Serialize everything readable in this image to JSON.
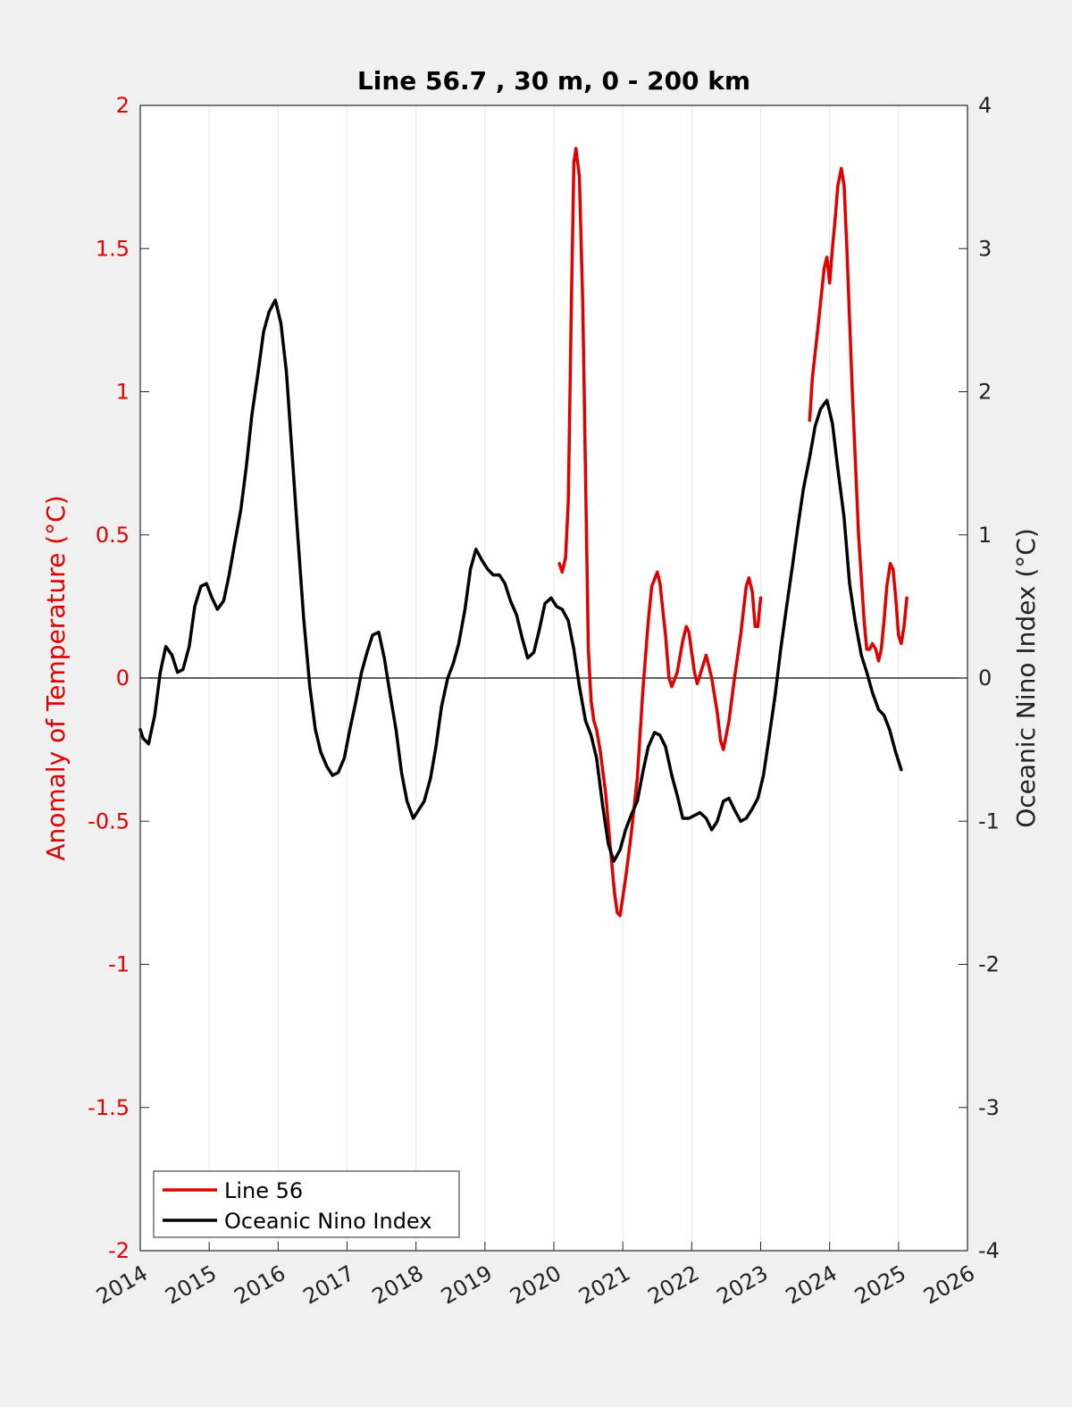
{
  "chart_data": {
    "type": "line",
    "title": "Line 56.7 , 30 m, 0 - 200 km",
    "ylabel_left": "Anomaly of Temperature (°C)",
    "ylabel_right": "Oceanic Nino Index (°C)",
    "xlim": [
      2014,
      2026
    ],
    "ylim_left": [
      -2,
      2
    ],
    "ylim_right": [
      -4,
      4
    ],
    "xticks": [
      "2014",
      "2015",
      "2016",
      "2017",
      "2018",
      "2019",
      "2020",
      "2021",
      "2022",
      "2023",
      "2024",
      "2025",
      "2026"
    ],
    "yticks_left": [
      "-2",
      "-1.5",
      "-1",
      "-0.5",
      "0",
      "0.5",
      "1",
      "1.5",
      "2"
    ],
    "yticks_right": [
      "-4",
      "-3",
      "-2",
      "-1",
      "0",
      "1",
      "2",
      "3",
      "4"
    ],
    "grid": "vertical",
    "zero_line": true,
    "legend_position": "bottom-left",
    "colors": {
      "line56": "#e00000",
      "oni": "#000000",
      "left_axis": "#e00000",
      "plot_bg": "#ffffff",
      "figure_bg": "#f0f0f0"
    },
    "series": [
      {
        "name": "Line 56",
        "axis": "left",
        "color": "#e00000",
        "segments": [
          [
            [
              2020.08,
              0.4
            ],
            [
              2020.12,
              0.37
            ],
            [
              2020.17,
              0.42
            ],
            [
              2020.21,
              0.62
            ],
            [
              2020.25,
              1.25
            ],
            [
              2020.29,
              1.8
            ],
            [
              2020.32,
              1.85
            ],
            [
              2020.37,
              1.75
            ],
            [
              2020.42,
              1.3
            ],
            [
              2020.46,
              0.7
            ],
            [
              2020.5,
              0.1
            ],
            [
              2020.54,
              -0.08
            ],
            [
              2020.58,
              -0.15
            ],
            [
              2020.62,
              -0.18
            ],
            [
              2020.67,
              -0.25
            ],
            [
              2020.75,
              -0.4
            ],
            [
              2020.83,
              -0.62
            ],
            [
              2020.88,
              -0.75
            ],
            [
              2020.92,
              -0.82
            ],
            [
              2020.96,
              -0.83
            ],
            [
              2021.04,
              -0.7
            ],
            [
              2021.12,
              -0.55
            ],
            [
              2021.21,
              -0.35
            ],
            [
              2021.29,
              -0.05
            ],
            [
              2021.37,
              0.2
            ],
            [
              2021.42,
              0.32
            ],
            [
              2021.5,
              0.37
            ],
            [
              2021.54,
              0.33
            ],
            [
              2021.62,
              0.15
            ],
            [
              2021.67,
              0.0
            ],
            [
              2021.71,
              -0.03
            ],
            [
              2021.79,
              0.02
            ],
            [
              2021.87,
              0.13
            ],
            [
              2021.92,
              0.18
            ],
            [
              2021.96,
              0.16
            ],
            [
              2022.04,
              0.02
            ],
            [
              2022.08,
              -0.02
            ],
            [
              2022.17,
              0.05
            ],
            [
              2022.21,
              0.08
            ],
            [
              2022.29,
              0.0
            ],
            [
              2022.37,
              -0.12
            ],
            [
              2022.42,
              -0.22
            ],
            [
              2022.46,
              -0.25
            ],
            [
              2022.54,
              -0.15
            ],
            [
              2022.62,
              0.0
            ],
            [
              2022.71,
              0.15
            ],
            [
              2022.79,
              0.32
            ],
            [
              2022.83,
              0.35
            ],
            [
              2022.88,
              0.3
            ],
            [
              2022.92,
              0.18
            ],
            [
              2022.96,
              0.18
            ],
            [
              2023.0,
              0.28
            ]
          ],
          [
            [
              2023.71,
              0.9
            ],
            [
              2023.75,
              1.05
            ],
            [
              2023.83,
              1.22
            ],
            [
              2023.92,
              1.43
            ],
            [
              2023.96,
              1.47
            ],
            [
              2024.0,
              1.38
            ],
            [
              2024.04,
              1.5
            ],
            [
              2024.08,
              1.6
            ],
            [
              2024.12,
              1.72
            ],
            [
              2024.17,
              1.78
            ],
            [
              2024.21,
              1.72
            ],
            [
              2024.25,
              1.5
            ],
            [
              2024.33,
              1.0
            ],
            [
              2024.42,
              0.5
            ],
            [
              2024.5,
              0.2
            ],
            [
              2024.54,
              0.1
            ],
            [
              2024.58,
              0.1
            ],
            [
              2024.62,
              0.12
            ],
            [
              2024.67,
              0.1
            ],
            [
              2024.71,
              0.06
            ],
            [
              2024.75,
              0.1
            ],
            [
              2024.79,
              0.2
            ],
            [
              2024.83,
              0.32
            ],
            [
              2024.88,
              0.4
            ],
            [
              2024.92,
              0.38
            ],
            [
              2024.96,
              0.28
            ],
            [
              2025.0,
              0.15
            ],
            [
              2025.04,
              0.12
            ],
            [
              2025.08,
              0.18
            ],
            [
              2025.12,
              0.28
            ]
          ]
        ]
      },
      {
        "name": "Oceanic Nino Index",
        "axis": "right",
        "color": "#000000",
        "points": [
          [
            2014.0,
            -0.36
          ],
          [
            2014.04,
            -0.42
          ],
          [
            2014.12,
            -0.46
          ],
          [
            2014.21,
            -0.26
          ],
          [
            2014.29,
            0.04
          ],
          [
            2014.37,
            0.22
          ],
          [
            2014.46,
            0.16
          ],
          [
            2014.54,
            0.04
          ],
          [
            2014.62,
            0.06
          ],
          [
            2014.71,
            0.22
          ],
          [
            2014.79,
            0.5
          ],
          [
            2014.88,
            0.64
          ],
          [
            2014.96,
            0.66
          ],
          [
            2015.04,
            0.56
          ],
          [
            2015.12,
            0.48
          ],
          [
            2015.21,
            0.54
          ],
          [
            2015.29,
            0.72
          ],
          [
            2015.37,
            0.94
          ],
          [
            2015.46,
            1.18
          ],
          [
            2015.54,
            1.48
          ],
          [
            2015.62,
            1.84
          ],
          [
            2015.71,
            2.14
          ],
          [
            2015.79,
            2.42
          ],
          [
            2015.87,
            2.56
          ],
          [
            2015.96,
            2.64
          ],
          [
            2016.04,
            2.48
          ],
          [
            2016.12,
            2.14
          ],
          [
            2016.21,
            1.52
          ],
          [
            2016.29,
            0.96
          ],
          [
            2016.37,
            0.42
          ],
          [
            2016.46,
            -0.06
          ],
          [
            2016.54,
            -0.36
          ],
          [
            2016.62,
            -0.52
          ],
          [
            2016.71,
            -0.62
          ],
          [
            2016.79,
            -0.68
          ],
          [
            2016.87,
            -0.66
          ],
          [
            2016.96,
            -0.56
          ],
          [
            2017.04,
            -0.36
          ],
          [
            2017.12,
            -0.18
          ],
          [
            2017.21,
            0.04
          ],
          [
            2017.29,
            0.18
          ],
          [
            2017.37,
            0.3
          ],
          [
            2017.46,
            0.32
          ],
          [
            2017.54,
            0.14
          ],
          [
            2017.62,
            -0.1
          ],
          [
            2017.71,
            -0.36
          ],
          [
            2017.79,
            -0.66
          ],
          [
            2017.87,
            -0.86
          ],
          [
            2017.96,
            -0.98
          ],
          [
            2018.04,
            -0.92
          ],
          [
            2018.12,
            -0.86
          ],
          [
            2018.21,
            -0.7
          ],
          [
            2018.29,
            -0.48
          ],
          [
            2018.37,
            -0.2
          ],
          [
            2018.46,
            0.0
          ],
          [
            2018.54,
            0.1
          ],
          [
            2018.62,
            0.24
          ],
          [
            2018.71,
            0.48
          ],
          [
            2018.79,
            0.76
          ],
          [
            2018.87,
            0.9
          ],
          [
            2018.96,
            0.82
          ],
          [
            2019.04,
            0.76
          ],
          [
            2019.12,
            0.72
          ],
          [
            2019.21,
            0.72
          ],
          [
            2019.29,
            0.66
          ],
          [
            2019.37,
            0.54
          ],
          [
            2019.46,
            0.44
          ],
          [
            2019.54,
            0.28
          ],
          [
            2019.62,
            0.14
          ],
          [
            2019.71,
            0.18
          ],
          [
            2019.79,
            0.34
          ],
          [
            2019.87,
            0.52
          ],
          [
            2019.96,
            0.56
          ],
          [
            2020.04,
            0.5
          ],
          [
            2020.12,
            0.48
          ],
          [
            2020.21,
            0.4
          ],
          [
            2020.29,
            0.2
          ],
          [
            2020.37,
            -0.06
          ],
          [
            2020.46,
            -0.3
          ],
          [
            2020.54,
            -0.4
          ],
          [
            2020.62,
            -0.56
          ],
          [
            2020.71,
            -0.9
          ],
          [
            2020.79,
            -1.16
          ],
          [
            2020.87,
            -1.28
          ],
          [
            2020.96,
            -1.2
          ],
          [
            2021.04,
            -1.06
          ],
          [
            2021.12,
            -0.96
          ],
          [
            2021.21,
            -0.86
          ],
          [
            2021.29,
            -0.66
          ],
          [
            2021.37,
            -0.48
          ],
          [
            2021.46,
            -0.38
          ],
          [
            2021.54,
            -0.4
          ],
          [
            2021.62,
            -0.48
          ],
          [
            2021.71,
            -0.68
          ],
          [
            2021.79,
            -0.82
          ],
          [
            2021.87,
            -0.98
          ],
          [
            2021.96,
            -0.98
          ],
          [
            2022.04,
            -0.96
          ],
          [
            2022.12,
            -0.94
          ],
          [
            2022.21,
            -0.98
          ],
          [
            2022.29,
            -1.06
          ],
          [
            2022.37,
            -1.0
          ],
          [
            2022.46,
            -0.86
          ],
          [
            2022.54,
            -0.84
          ],
          [
            2022.62,
            -0.92
          ],
          [
            2022.71,
            -1.0
          ],
          [
            2022.79,
            -0.98
          ],
          [
            2022.87,
            -0.92
          ],
          [
            2022.96,
            -0.84
          ],
          [
            2023.04,
            -0.68
          ],
          [
            2023.12,
            -0.42
          ],
          [
            2023.21,
            -0.12
          ],
          [
            2023.29,
            0.2
          ],
          [
            2023.37,
            0.48
          ],
          [
            2023.46,
            0.78
          ],
          [
            2023.54,
            1.06
          ],
          [
            2023.62,
            1.32
          ],
          [
            2023.71,
            1.54
          ],
          [
            2023.79,
            1.76
          ],
          [
            2023.87,
            1.88
          ],
          [
            2023.96,
            1.94
          ],
          [
            2024.04,
            1.78
          ],
          [
            2024.12,
            1.46
          ],
          [
            2024.21,
            1.12
          ],
          [
            2024.29,
            0.66
          ],
          [
            2024.37,
            0.4
          ],
          [
            2024.46,
            0.16
          ],
          [
            2024.54,
            0.04
          ],
          [
            2024.62,
            -0.1
          ],
          [
            2024.71,
            -0.22
          ],
          [
            2024.79,
            -0.26
          ],
          [
            2024.87,
            -0.36
          ],
          [
            2024.96,
            -0.52
          ],
          [
            2025.04,
            -0.64
          ]
        ]
      }
    ]
  }
}
